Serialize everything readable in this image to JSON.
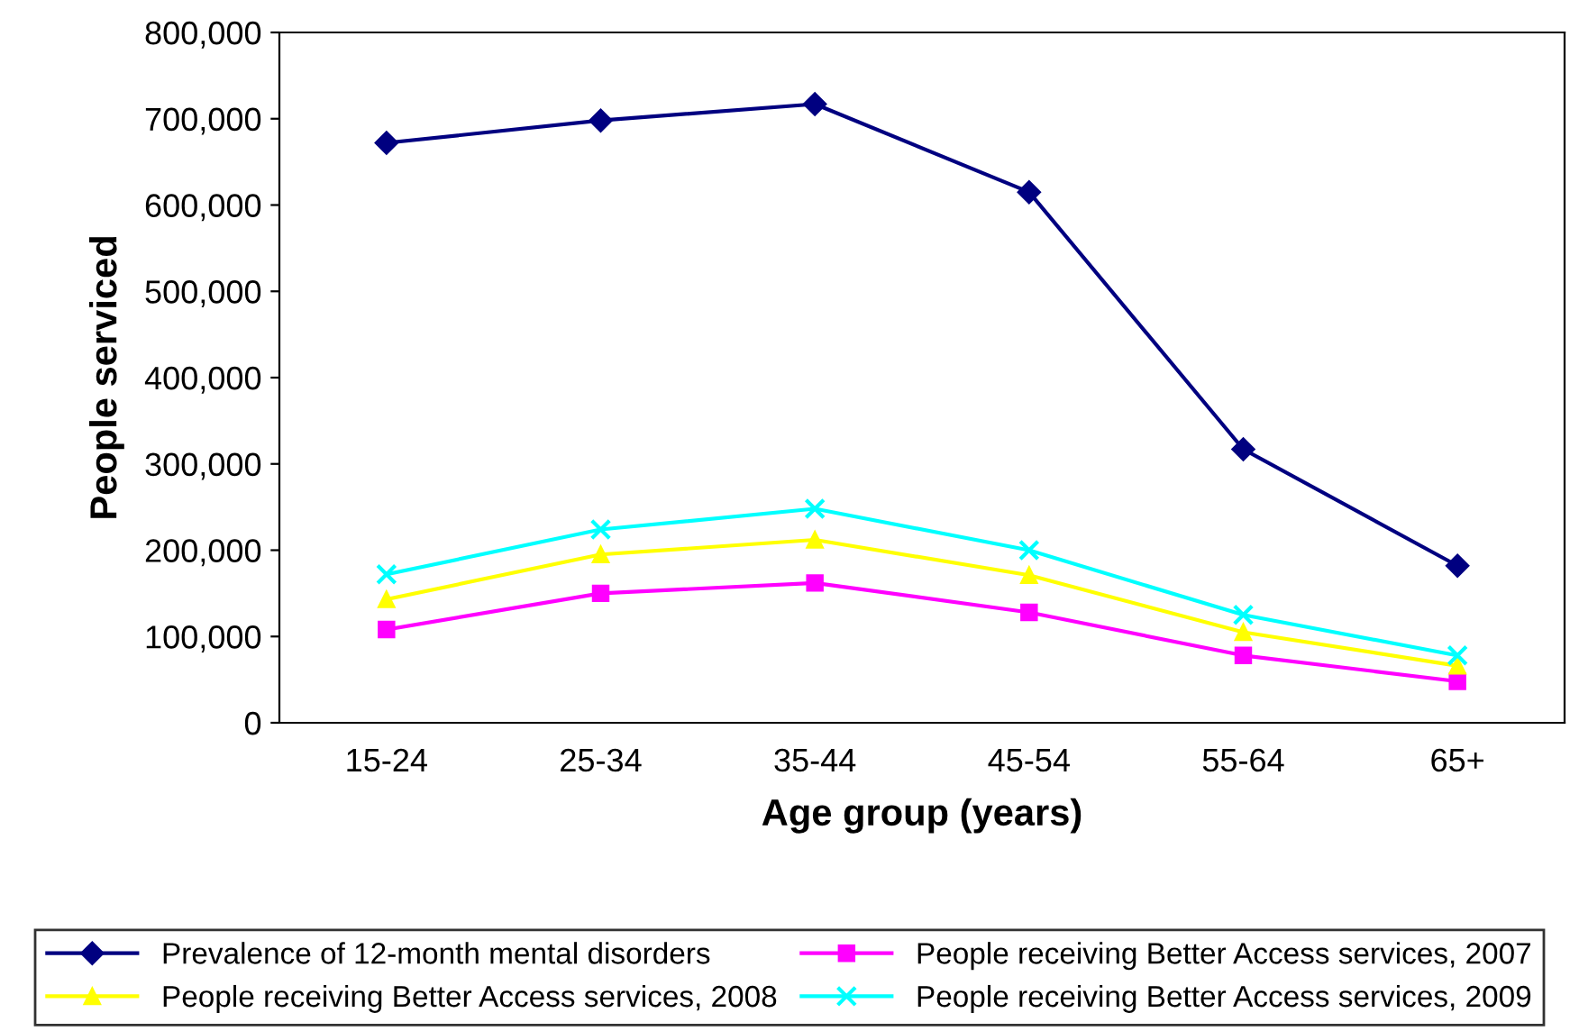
{
  "chart_data": {
    "type": "line",
    "xlabel": "Age group (years)",
    "ylabel": "People serviced",
    "categories": [
      "15-24",
      "25-34",
      "35-44",
      "45-54",
      "55-64",
      "65+"
    ],
    "ylim": [
      0,
      800000
    ],
    "yticks": [
      {
        "value": 0,
        "label": "0"
      },
      {
        "value": 100000,
        "label": "100,000"
      },
      {
        "value": 200000,
        "label": "200,000"
      },
      {
        "value": 300000,
        "label": "300,000"
      },
      {
        "value": 400000,
        "label": "400,000"
      },
      {
        "value": 500000,
        "label": "500,000"
      },
      {
        "value": 600000,
        "label": "600,000"
      },
      {
        "value": 700000,
        "label": "700,000"
      },
      {
        "value": 800000,
        "label": "800,000"
      }
    ],
    "grid": false,
    "legend": "bottom",
    "line_style": "solid",
    "series": [
      {
        "name": "Prevalence of 12-month mental disorders",
        "color": "#000080",
        "marker": "diamond",
        "values": [
          672000,
          698000,
          717000,
          615000,
          317000,
          182000
        ]
      },
      {
        "name": "People receiving Better Access services, 2007",
        "color": "#ff00ff",
        "marker": "square",
        "values": [
          108000,
          150000,
          162000,
          128000,
          78000,
          48000
        ]
      },
      {
        "name": "People receiving Better Access services, 2008",
        "color": "#ffff00",
        "marker": "triangle",
        "values": [
          143000,
          195000,
          212000,
          171000,
          105000,
          66000
        ]
      },
      {
        "name": "People receiving Better Access services, 2009",
        "color": "#00ffff",
        "marker": "cross",
        "values": [
          172000,
          224000,
          248000,
          200000,
          125000,
          78000
        ]
      }
    ]
  }
}
